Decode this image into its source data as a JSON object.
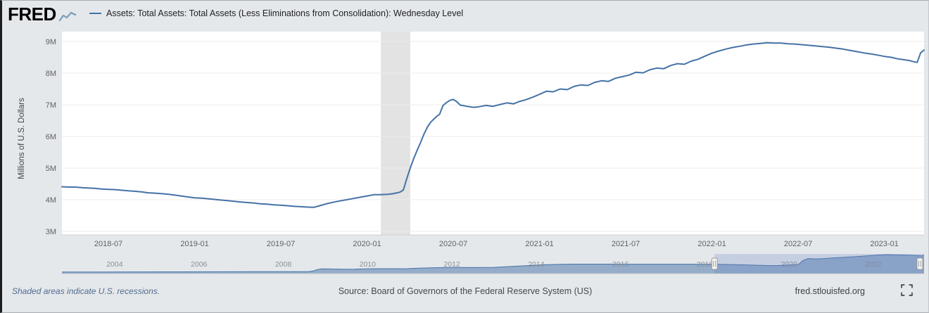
{
  "header": {
    "logo_text": "FRED"
  },
  "footer": {
    "recessions_note": "Shaded areas indicate U.S. recessions.",
    "source": "Source: Board of Governors of the Federal Reserve System (US)",
    "site": "fred.stlouisfed.org"
  },
  "colors": {
    "line": "#4572a7",
    "background": "#e5e8eb",
    "plot_background": "#ffffff",
    "gridline": "#ededed",
    "recession_band": "#e3e3e3",
    "navigator_fill": "rgba(69,114,167,0.5)",
    "navigator_mask": "rgba(102,133,194,0.25)",
    "logo_spark": "#7fa3bf"
  },
  "chart_data": {
    "type": "line",
    "title": "Assets: Total Assets: Total Assets (Less Eliminations from Consolidation): Wednesday Level",
    "ylabel": "Millions of U.S. Dollars",
    "xlim": [
      2018.23,
      2023.23
    ],
    "ylim": [
      3,
      9
    ],
    "grid": false,
    "legend_position": "top",
    "y_ticks": [
      {
        "v": 3,
        "label": "3M"
      },
      {
        "v": 4,
        "label": "4M"
      },
      {
        "v": 5,
        "label": "5M"
      },
      {
        "v": 6,
        "label": "6M"
      },
      {
        "v": 7,
        "label": "7M"
      },
      {
        "v": 8,
        "label": "8M"
      },
      {
        "v": 9,
        "label": "9M"
      }
    ],
    "x_ticks": [
      {
        "v": 2018.5,
        "label": "2018-07"
      },
      {
        "v": 2019.0,
        "label": "2019-01"
      },
      {
        "v": 2019.5,
        "label": "2019-07"
      },
      {
        "v": 2020.0,
        "label": "2020-01"
      },
      {
        "v": 2020.5,
        "label": "2020-07"
      },
      {
        "v": 2021.0,
        "label": "2021-01"
      },
      {
        "v": 2021.5,
        "label": "2021-07"
      },
      {
        "v": 2022.0,
        "label": "2022-01"
      },
      {
        "v": 2022.5,
        "label": "2022-07"
      },
      {
        "v": 2023.0,
        "label": "2023-01"
      }
    ],
    "recession_bands": [
      [
        2020.08,
        2020.25
      ]
    ],
    "series": [
      {
        "name": "Assets: Total Assets: Total Assets (Less Eliminations from Consolidation): Wednesday Level",
        "color": "#4572a7",
        "x": [
          2018.23,
          2018.27,
          2018.31,
          2018.35,
          2018.38,
          2018.42,
          2018.46,
          2018.5,
          2018.54,
          2018.58,
          2018.62,
          2018.65,
          2018.69,
          2018.73,
          2018.77,
          2018.81,
          2018.85,
          2018.88,
          2018.92,
          2018.96,
          2019.0,
          2019.04,
          2019.08,
          2019.12,
          2019.15,
          2019.19,
          2019.23,
          2019.27,
          2019.31,
          2019.35,
          2019.38,
          2019.42,
          2019.46,
          2019.5,
          2019.54,
          2019.58,
          2019.62,
          2019.65,
          2019.69,
          2019.73,
          2019.77,
          2019.81,
          2019.85,
          2019.88,
          2019.92,
          2019.96,
          2020.0,
          2020.04,
          2020.08,
          2020.12,
          2020.15,
          2020.19,
          2020.21,
          2020.23,
          2020.25,
          2020.27,
          2020.29,
          2020.31,
          2020.33,
          2020.35,
          2020.37,
          2020.4,
          2020.42,
          2020.44,
          2020.46,
          2020.48,
          2020.5,
          2020.52,
          2020.54,
          2020.58,
          2020.62,
          2020.65,
          2020.69,
          2020.73,
          2020.77,
          2020.81,
          2020.85,
          2020.88,
          2020.92,
          2020.96,
          2021.0,
          2021.04,
          2021.08,
          2021.12,
          2021.16,
          2021.2,
          2021.24,
          2021.28,
          2021.32,
          2021.36,
          2021.4,
          2021.44,
          2021.48,
          2021.52,
          2021.56,
          2021.6,
          2021.64,
          2021.68,
          2021.72,
          2021.76,
          2021.8,
          2021.84,
          2021.88,
          2021.92,
          2021.96,
          2022.0,
          2022.04,
          2022.08,
          2022.12,
          2022.16,
          2022.2,
          2022.24,
          2022.28,
          2022.32,
          2022.36,
          2022.4,
          2022.44,
          2022.48,
          2022.52,
          2022.56,
          2022.6,
          2022.64,
          2022.68,
          2022.72,
          2022.76,
          2022.8,
          2022.84,
          2022.88,
          2022.92,
          2022.96,
          2023.0,
          2023.04,
          2023.08,
          2023.12,
          2023.15,
          2023.17,
          2023.19,
          2023.21,
          2023.23
        ],
        "y": [
          4.41,
          4.4,
          4.4,
          4.38,
          4.37,
          4.36,
          4.34,
          4.33,
          4.32,
          4.3,
          4.28,
          4.27,
          4.25,
          4.22,
          4.21,
          4.19,
          4.17,
          4.15,
          4.12,
          4.09,
          4.06,
          4.05,
          4.03,
          4.01,
          3.99,
          3.97,
          3.95,
          3.93,
          3.91,
          3.89,
          3.87,
          3.86,
          3.84,
          3.83,
          3.81,
          3.79,
          3.78,
          3.77,
          3.76,
          3.82,
          3.88,
          3.93,
          3.97,
          4.0,
          4.04,
          4.08,
          4.12,
          4.16,
          4.16,
          4.17,
          4.19,
          4.24,
          4.31,
          4.67,
          5.0,
          5.3,
          5.56,
          5.81,
          6.08,
          6.3,
          6.46,
          6.62,
          6.7,
          6.98,
          7.07,
          7.14,
          7.17,
          7.1,
          6.99,
          6.95,
          6.92,
          6.94,
          6.98,
          6.95,
          7.01,
          7.06,
          7.03,
          7.1,
          7.16,
          7.24,
          7.33,
          7.43,
          7.41,
          7.5,
          7.48,
          7.58,
          7.63,
          7.61,
          7.71,
          7.76,
          7.74,
          7.84,
          7.89,
          7.94,
          8.03,
          8.01,
          8.11,
          8.16,
          8.14,
          8.24,
          8.3,
          8.28,
          8.38,
          8.44,
          8.54,
          8.63,
          8.7,
          8.76,
          8.81,
          8.85,
          8.89,
          8.92,
          8.94,
          8.96,
          8.95,
          8.95,
          8.93,
          8.92,
          8.9,
          8.88,
          8.86,
          8.84,
          8.82,
          8.79,
          8.76,
          8.72,
          8.68,
          8.64,
          8.61,
          8.57,
          8.53,
          8.5,
          8.45,
          8.42,
          8.39,
          8.36,
          8.34,
          8.64,
          8.73
        ]
      }
    ],
    "navigator": {
      "xlim": [
        2002.75,
        2023.2
      ],
      "ylim": [
        0,
        9.3
      ],
      "year_ticks": [
        2004,
        2006,
        2008,
        2010,
        2012,
        2014,
        2016,
        2018,
        2020,
        2022
      ],
      "selection": [
        2018.23,
        2023.2
      ],
      "x": [
        2002.75,
        2003.5,
        2004.5,
        2005.5,
        2006.5,
        2007.5,
        2008.2,
        2008.6,
        2008.72,
        2008.8,
        2008.9,
        2009.1,
        2009.4,
        2009.7,
        2010.0,
        2010.3,
        2010.6,
        2010.9,
        2011.2,
        2011.5,
        2011.8,
        2012.2,
        2012.6,
        2013.0,
        2013.4,
        2013.8,
        2014.2,
        2014.6,
        2014.9,
        2015.3,
        2015.8,
        2016.3,
        2016.8,
        2017.3,
        2017.8,
        2018.1,
        2018.4,
        2018.8,
        2019.2,
        2019.55,
        2019.7,
        2019.9,
        2020.1,
        2020.22,
        2020.32,
        2020.45,
        2020.6,
        2020.8,
        2021.0,
        2021.3,
        2021.6,
        2021.9,
        2022.1,
        2022.3,
        2022.5,
        2022.8,
        2023.0,
        2023.15,
        2023.2
      ],
      "y": [
        0.76,
        0.78,
        0.8,
        0.83,
        0.86,
        0.89,
        0.91,
        0.93,
        1.3,
        1.9,
        2.24,
        2.2,
        2.08,
        2.12,
        2.28,
        2.33,
        2.33,
        2.29,
        2.55,
        2.75,
        2.85,
        2.9,
        2.86,
        2.95,
        3.35,
        3.8,
        4.2,
        4.4,
        4.49,
        4.48,
        4.47,
        4.46,
        4.45,
        4.46,
        4.44,
        4.42,
        4.35,
        4.18,
        3.97,
        3.8,
        3.77,
        4.0,
        4.17,
        4.3,
        6.1,
        7.15,
        6.93,
        7.03,
        7.33,
        7.67,
        8.06,
        8.47,
        8.78,
        8.96,
        8.9,
        8.7,
        8.53,
        8.36,
        8.73
      ]
    }
  }
}
